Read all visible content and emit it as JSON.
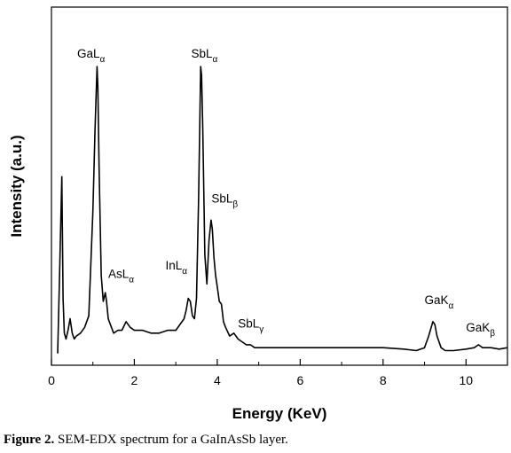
{
  "chart_data": {
    "type": "line",
    "xlabel": "Energy (KeV)",
    "ylabel": "Intensity (a.u.)",
    "xlim": [
      0,
      11
    ],
    "ylim": [
      0,
      100
    ],
    "x_ticks": [
      0,
      2,
      4,
      6,
      8,
      10
    ],
    "x_tick_labels": [
      "0",
      "2",
      "4",
      "6",
      "8",
      "10"
    ],
    "grid": false,
    "legend": "none",
    "series_color": "#000000",
    "x": [
      0.15,
      0.2,
      0.25,
      0.28,
      0.31,
      0.35,
      0.4,
      0.45,
      0.5,
      0.55,
      0.6,
      0.7,
      0.8,
      0.9,
      1.0,
      1.05,
      1.1,
      1.12,
      1.15,
      1.2,
      1.25,
      1.3,
      1.33,
      1.37,
      1.42,
      1.5,
      1.6,
      1.7,
      1.8,
      1.9,
      2.0,
      2.2,
      2.4,
      2.6,
      2.8,
      3.0,
      3.1,
      3.2,
      3.25,
      3.3,
      3.35,
      3.4,
      3.45,
      3.5,
      3.55,
      3.6,
      3.62,
      3.65,
      3.7,
      3.75,
      3.8,
      3.85,
      3.88,
      3.92,
      3.96,
      4.0,
      4.05,
      4.1,
      4.15,
      4.2,
      4.3,
      4.4,
      4.5,
      4.6,
      4.7,
      4.8,
      4.9,
      5.0,
      5.5,
      6.0,
      6.5,
      7.0,
      7.5,
      8.0,
      8.5,
      8.8,
      9.0,
      9.1,
      9.2,
      9.25,
      9.3,
      9.4,
      9.5,
      9.7,
      10.0,
      10.2,
      10.3,
      10.4,
      10.6,
      10.8,
      11.0
    ],
    "y": [
      1,
      30,
      62,
      20,
      8,
      6,
      9,
      13,
      8,
      6,
      7,
      8,
      10,
      14,
      50,
      78,
      100,
      93,
      65,
      28,
      19,
      22,
      19,
      13,
      11,
      8,
      9,
      9,
      12,
      10,
      9,
      9,
      8,
      8,
      9,
      9,
      11,
      13,
      16,
      20,
      19,
      14,
      13,
      20,
      55,
      100,
      97,
      78,
      35,
      25,
      40,
      47,
      44,
      34,
      28,
      24,
      19,
      18,
      12,
      10,
      7,
      8,
      6,
      5,
      4,
      4,
      3,
      3,
      3,
      3,
      3,
      3,
      3,
      3,
      2.5,
      2,
      3,
      7,
      12,
      11,
      7,
      3,
      2,
      2,
      2.5,
      3,
      4,
      3,
      3,
      2.5,
      3
    ],
    "annotations": [
      {
        "main": "GaL",
        "sub": "α",
        "x": 0.62,
        "y": 103
      },
      {
        "main": "AsL",
        "sub": "α",
        "x": 1.37,
        "y": 27
      },
      {
        "main": "SbL",
        "sub": "α",
        "x": 3.37,
        "y": 103
      },
      {
        "main": "InL",
        "sub": "α",
        "x": 2.75,
        "y": 30
      },
      {
        "main": "SbL",
        "sub": "β",
        "x": 3.86,
        "y": 53
      },
      {
        "main": "SbL",
        "sub": "γ",
        "x": 4.5,
        "y": 10
      },
      {
        "main": "GaK",
        "sub": "α",
        "x": 9.0,
        "y": 18
      },
      {
        "main": "GaK",
        "sub": "β",
        "x": 10.0,
        "y": 8.5
      }
    ]
  },
  "caption": {
    "label": "Figure 2.",
    "text": " SEM-EDX spectrum for a GaInAsSb layer."
  }
}
